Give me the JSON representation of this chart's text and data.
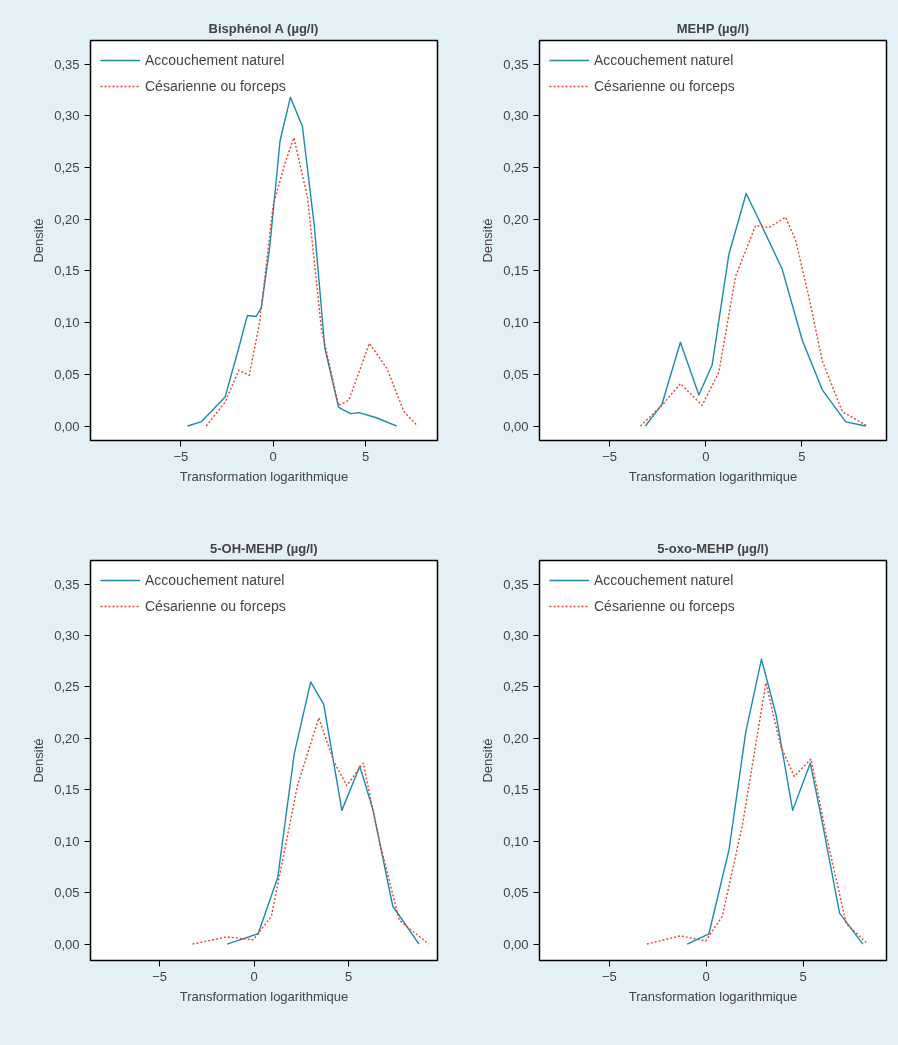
{
  "chart_data": [
    {
      "type": "line",
      "title": "Bisphénol A (µg/l)",
      "xlabel": "Transformation logarithmique",
      "ylabel": "Densité",
      "xlim": [
        -9.9,
        8.9
      ],
      "ylim": [
        -0.014,
        0.373
      ],
      "xticks": [
        -5,
        0,
        5
      ],
      "yticks": [
        {
          "value": 0,
          "label": "0,00"
        },
        {
          "value": 0.05,
          "label": "0,05"
        },
        {
          "value": 0.1,
          "label": "0,10"
        },
        {
          "value": 0.15,
          "label": "0,15"
        },
        {
          "value": 0.2,
          "label": "0,20"
        },
        {
          "value": 0.25,
          "label": "0,25"
        },
        {
          "value": 0.3,
          "label": "0,30"
        },
        {
          "value": 0.35,
          "label": "0,35"
        }
      ],
      "grid": false,
      "legend": "top left",
      "series": [
        {
          "name": "Accouchement naturel",
          "color": "#1a8bab",
          "line_style": "solid",
          "x": [
            -4.65,
            -3.91,
            -2.61,
            -1.86,
            -1.4,
            -0.93,
            -0.65,
            -0.19,
            0.37,
            0.93,
            1.58,
            2.23,
            2.79,
            3.54,
            4.19,
            4.65,
            5.59,
            6.7
          ],
          "values": [
            0,
            0.004,
            0.028,
            0.076,
            0.107,
            0.106,
            0.114,
            0.173,
            0.276,
            0.318,
            0.29,
            0.193,
            0.076,
            0.018,
            0.012,
            0.013,
            0.008,
            0
          ]
        },
        {
          "name": "Césarienne ou forceps",
          "color": "#e8412f",
          "line_style": "dotted",
          "x": [
            -3.63,
            -2.61,
            -1.86,
            -1.3,
            -0.74,
            0,
            0.65,
            1.12,
            1.86,
            2.61,
            3.54,
            4.1,
            5.21,
            6.15,
            7.08,
            7.82
          ],
          "values": [
            0,
            0.023,
            0.054,
            0.049,
            0.1,
            0.214,
            0.255,
            0.279,
            0.221,
            0.094,
            0.02,
            0.025,
            0.08,
            0.056,
            0.014,
            0
          ]
        }
      ]
    },
    {
      "type": "line",
      "title": "MEHP (µg/l)",
      "xlabel": "Transformation logarithmique",
      "ylabel": "Densité",
      "xlim": [
        -8.65,
        9.4
      ],
      "ylim": [
        -0.014,
        0.373
      ],
      "xticks": [
        -5,
        0,
        5
      ],
      "yticks": [
        {
          "value": 0,
          "label": "0,00"
        },
        {
          "value": 0.05,
          "label": "0,05"
        },
        {
          "value": 0.1,
          "label": "0,10"
        },
        {
          "value": 0.15,
          "label": "0,15"
        },
        {
          "value": 0.2,
          "label": "0,20"
        },
        {
          "value": 0.25,
          "label": "0,25"
        },
        {
          "value": 0.3,
          "label": "0,30"
        },
        {
          "value": 0.35,
          "label": "0,35"
        }
      ],
      "grid": false,
      "legend": "top left",
      "series": [
        {
          "name": "Accouchement naturel",
          "color": "#1a8bab",
          "line_style": "solid",
          "x": [
            -3.14,
            -2.28,
            -1.32,
            -0.36,
            0.33,
            1.2,
            2.1,
            2.93,
            3.97,
            5.02,
            6.06,
            7.28,
            8.32
          ],
          "values": [
            0,
            0.021,
            0.081,
            0.03,
            0.059,
            0.166,
            0.225,
            0.193,
            0.152,
            0.083,
            0.035,
            0.004,
            0
          ]
        },
        {
          "name": "Césarienne ou forceps",
          "color": "#e8412f",
          "line_style": "dotted",
          "x": [
            -3.4,
            -2.28,
            -1.32,
            -0.19,
            0.68,
            1.55,
            2.59,
            3.28,
            4.15,
            4.67,
            5.36,
            6.06,
            7.1,
            8.4
          ],
          "values": [
            0,
            0.02,
            0.041,
            0.02,
            0.052,
            0.145,
            0.194,
            0.192,
            0.202,
            0.18,
            0.125,
            0.063,
            0.014,
            0
          ]
        }
      ]
    },
    {
      "type": "line",
      "title": "5-OH-MEHP (µg/l)",
      "xlabel": "Transformation logarithmique",
      "ylabel": "Densité",
      "xlim": [
        -8.66,
        9.7
      ],
      "ylim": [
        -0.016,
        0.373
      ],
      "xticks": [
        -5,
        0,
        5
      ],
      "yticks": [
        {
          "value": 0,
          "label": "0,00"
        },
        {
          "value": 0.05,
          "label": "0,05"
        },
        {
          "value": 0.1,
          "label": "0,10"
        },
        {
          "value": 0.15,
          "label": "0,15"
        },
        {
          "value": 0.2,
          "label": "0,20"
        },
        {
          "value": 0.25,
          "label": "0,25"
        },
        {
          "value": 0.3,
          "label": "0,30"
        },
        {
          "value": 0.35,
          "label": "0,35"
        }
      ],
      "grid": false,
      "legend": "top left",
      "series": [
        {
          "name": "Accouchement naturel",
          "color": "#1a8bab",
          "line_style": "solid",
          "x": [
            -1.44,
            0.21,
            1.25,
            2.12,
            2.99,
            3.68,
            4.64,
            5.59,
            6.29,
            7.33,
            8.72
          ],
          "values": [
            0,
            0.01,
            0.065,
            0.185,
            0.255,
            0.233,
            0.13,
            0.173,
            0.13,
            0.037,
            0
          ]
        },
        {
          "name": "Césarienne ou forceps",
          "color": "#e8412f",
          "line_style": "dotted",
          "x": [
            -3.26,
            -1.44,
            -0.05,
            0.91,
            2.29,
            3.42,
            4.2,
            4.9,
            5.77,
            6.64,
            7.68,
            9.24
          ],
          "values": [
            0,
            0.007,
            0.004,
            0.027,
            0.154,
            0.22,
            0.178,
            0.154,
            0.176,
            0.099,
            0.023,
            0
          ]
        }
      ]
    },
    {
      "type": "line",
      "title": "5-oxo-MEHP (µg/l)",
      "xlabel": "Transformation logarithmique",
      "ylabel": "Densité",
      "xlim": [
        -8.6,
        9.3
      ],
      "ylim": [
        -0.016,
        0.373
      ],
      "xticks": [
        -5,
        0,
        5
      ],
      "yticks": [
        {
          "value": 0,
          "label": "0,00"
        },
        {
          "value": 0.05,
          "label": "0,05"
        },
        {
          "value": 0.1,
          "label": "0,10"
        },
        {
          "value": 0.15,
          "label": "0,15"
        },
        {
          "value": 0.2,
          "label": "0,20"
        },
        {
          "value": 0.25,
          "label": "0,25"
        },
        {
          "value": 0.3,
          "label": "0,30"
        },
        {
          "value": 0.35,
          "label": "0,35"
        }
      ],
      "grid": false,
      "legend": "top left",
      "series": [
        {
          "name": "Accouchement naturel",
          "color": "#1a8bab",
          "line_style": "solid",
          "x": [
            -0.98,
            0.14,
            1.18,
            2.04,
            2.85,
            3.6,
            4.46,
            5.37,
            6.01,
            6.88,
            8.08
          ],
          "values": [
            0,
            0.01,
            0.092,
            0.206,
            0.277,
            0.223,
            0.13,
            0.176,
            0.116,
            0.03,
            0
          ]
        },
        {
          "name": "Césarienne ou forceps",
          "color": "#e8412f",
          "line_style": "dotted",
          "x": [
            -3.06,
            -1.33,
            -0.03,
            0.83,
            1.87,
            3.08,
            3.85,
            4.54,
            5.41,
            6.19,
            7.22,
            8.34
          ],
          "values": [
            0,
            0.008,
            0.003,
            0.027,
            0.116,
            0.254,
            0.192,
            0.163,
            0.18,
            0.106,
            0.02,
            0
          ]
        }
      ]
    }
  ]
}
